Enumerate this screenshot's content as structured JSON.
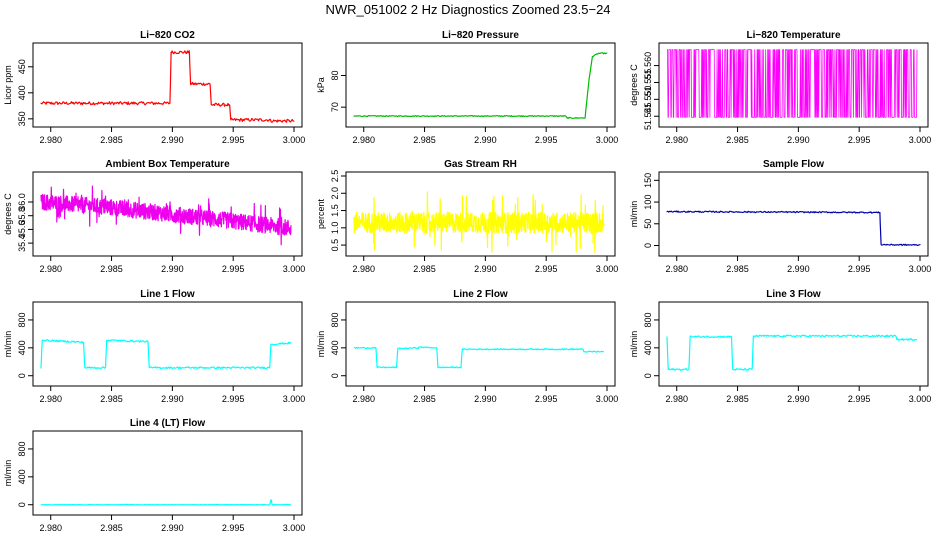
{
  "title": "NWR_051002  2 Hz Diagnostics Zoomed 23.5−24",
  "x_ticks": [
    "2.980",
    "2.985",
    "2.990",
    "2.995",
    "3.000"
  ],
  "chart_data": [
    {
      "type": "line",
      "title": "Li−820 CO2",
      "ylabel": "Licor ppm",
      "color": "#ff0000",
      "xlim": [
        2.9792,
        3.0
      ],
      "ylim": [
        342,
        488
      ],
      "yticks": [
        "350",
        "400",
        "450"
      ],
      "series": [
        {
          "x": [
            2.9792,
            2.9898,
            2.9899,
            2.9914,
            2.9915,
            2.9931,
            2.9932,
            2.9947,
            2.9948,
            2.998,
            2.9981,
            3.0
          ],
          "y": [
            380,
            380,
            478,
            478,
            417,
            417,
            377,
            377,
            348,
            348,
            346,
            346
          ]
        }
      ]
    },
    {
      "type": "line",
      "title": "Li−820 Pressure",
      "ylabel": "kPa",
      "color": "#00bb00",
      "xlim": [
        2.9792,
        3.0
      ],
      "ylim": [
        65,
        89
      ],
      "yticks": [
        "70",
        "80"
      ],
      "series": [
        {
          "x": [
            2.9792,
            2.9966,
            2.9967,
            2.9982,
            2.9985,
            2.9988,
            2.9993,
            3.0
          ],
          "y": [
            67.2,
            67.2,
            66.6,
            66.6,
            78,
            86,
            87,
            87
          ]
        }
      ]
    },
    {
      "type": "line",
      "title": "Li−820 Temperature",
      "ylabel": "degrees C",
      "color": "#ff00ff",
      "xlim": [
        2.9792,
        3.0
      ],
      "ylim": [
        51.543,
        51.5655
      ],
      "yticks": [
        "51.545",
        "51.550",
        "51.555",
        "51.560"
      ],
      "series": [
        {
          "x": [
            2.9792,
            2.99975
          ],
          "y": [
            51.5447,
            51.5647
          ]
        }
      ]
    },
    {
      "type": "line",
      "title": "Ambient Box Temperature",
      "ylabel": "degrees C",
      "color": "#ee00ee",
      "xlim": [
        2.9792,
        3.0
      ],
      "ylim": [
        35.27,
        36.38
      ],
      "yticks": [
        "35.4",
        "35.6",
        "35.8",
        "36.0"
      ],
      "series": [
        {
          "x": [
            2.9792,
            2.985,
            2.995,
            2.99975
          ],
          "y": [
            36.0,
            35.92,
            35.72,
            35.62
          ]
        }
      ]
    },
    {
      "type": "line",
      "title": "Gas Stream RH",
      "ylabel": "percent",
      "color": "#ffff00",
      "xlim": [
        2.9792,
        3.0
      ],
      "ylim": [
        0.3,
        2.5
      ],
      "yticks": [
        "0.5",
        "1.0",
        "1.5",
        "2.0",
        "2.5"
      ],
      "series": [
        {
          "x": [
            2.9792,
            2.99975
          ],
          "y": [
            1.15,
            1.15
          ]
        }
      ]
    },
    {
      "type": "line",
      "title": "Sample Flow",
      "ylabel": "ml/min",
      "color": "#0000aa",
      "xlim": [
        2.9792,
        3.0
      ],
      "ylim": [
        -15,
        160
      ],
      "yticks": [
        "0",
        "50",
        "100",
        "150"
      ],
      "series": [
        {
          "x": [
            2.9792,
            2.9966,
            2.9967,
            2.9968,
            3.0
          ],
          "y": [
            78,
            76,
            76,
            2,
            1
          ]
        }
      ]
    },
    {
      "type": "line",
      "title": "Line 1 Flow",
      "ylabel": "ml/min",
      "color": "#00ffff",
      "xlim": [
        2.9792,
        3.0
      ],
      "ylim": [
        -90,
        1000
      ],
      "yticks": [
        "0",
        "400",
        "800"
      ],
      "series": [
        {
          "x": [
            2.9792,
            2.9793,
            2.9827,
            2.9828,
            2.9845,
            2.9846,
            2.988,
            2.9881,
            2.998,
            2.9981,
            2.99975
          ],
          "y": [
            110,
            510,
            480,
            115,
            115,
            510,
            490,
            115,
            115,
            450,
            470
          ]
        }
      ]
    },
    {
      "type": "line",
      "title": "Line 2 Flow",
      "ylabel": "ml/min",
      "color": "#00ffff",
      "xlim": [
        2.9792,
        3.0
      ],
      "ylim": [
        -90,
        1000
      ],
      "yticks": [
        "0",
        "400",
        "800"
      ],
      "series": [
        {
          "x": [
            2.9792,
            2.981,
            2.9811,
            2.9827,
            2.9828,
            2.9845,
            2.9846,
            2.986,
            2.9861,
            2.988,
            2.9881,
            2.998,
            2.9981,
            2.99975
          ],
          "y": [
            400,
            400,
            120,
            120,
            390,
            400,
            410,
            400,
            120,
            120,
            380,
            380,
            345,
            345
          ]
        }
      ]
    },
    {
      "type": "line",
      "title": "Line 3 Flow",
      "ylabel": "ml/min",
      "color": "#00ffff",
      "xlim": [
        2.9792,
        3.0
      ],
      "ylim": [
        -90,
        1000
      ],
      "yticks": [
        "0",
        "400",
        "800"
      ],
      "series": [
        {
          "x": [
            2.9792,
            2.9793,
            2.981,
            2.9811,
            2.9845,
            2.9846,
            2.9862,
            2.9863,
            2.998,
            2.9981,
            2.99975
          ],
          "y": [
            560,
            90,
            90,
            560,
            560,
            90,
            90,
            570,
            570,
            520,
            520
          ]
        }
      ]
    },
    {
      "type": "line",
      "title": "Line 4 (LT) Flow",
      "ylabel": "ml/min",
      "color": "#00ffff",
      "xlim": [
        2.9792,
        3.0
      ],
      "ylim": [
        -90,
        1000
      ],
      "yticks": [
        "0",
        "400",
        "800"
      ],
      "series": [
        {
          "x": [
            2.9792,
            2.998,
            2.9981,
            2.99815,
            2.9982,
            2.99975
          ],
          "y": [
            0,
            0,
            70,
            60,
            0,
            0
          ]
        }
      ]
    }
  ]
}
